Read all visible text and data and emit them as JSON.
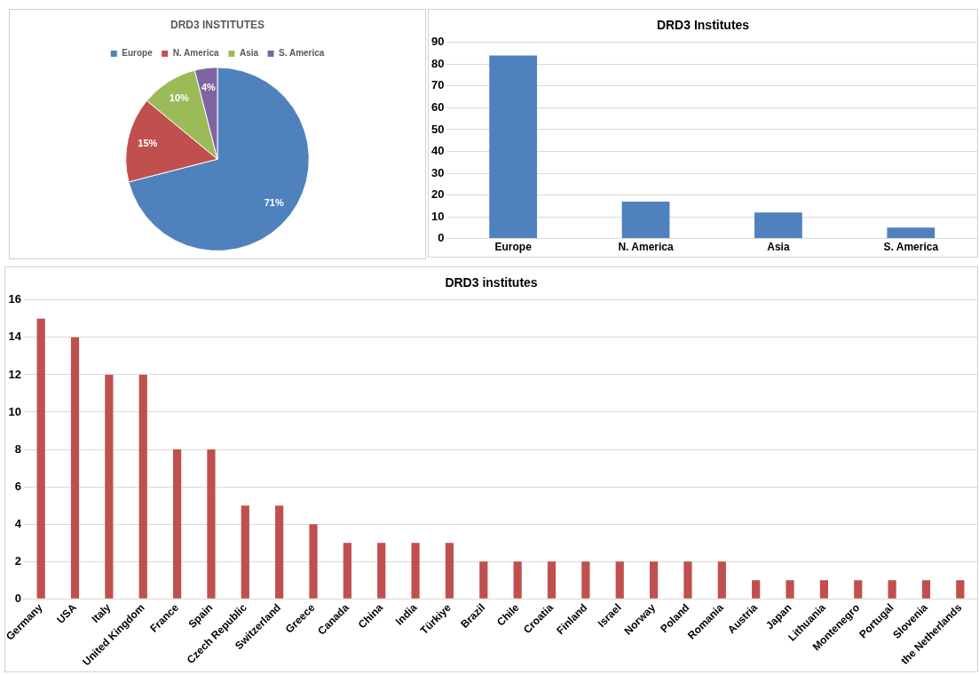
{
  "chart_data": [
    {
      "type": "pie",
      "title": "DRD3 INSTITUTES",
      "categories": [
        "Europe",
        "N. America",
        "Asia",
        "S. America"
      ],
      "values": [
        71,
        15,
        10,
        4
      ],
      "colors": [
        "#4f81bd",
        "#c0504d",
        "#9bbb59",
        "#8064a2"
      ],
      "value_labels": [
        "71%",
        "15%",
        "10%",
        "4%"
      ],
      "legend": "top"
    },
    {
      "type": "bar",
      "title": "DRD3 Institutes",
      "categories": [
        "Europe",
        "N. America",
        "Asia",
        "S. America"
      ],
      "values": [
        84,
        17,
        12,
        5
      ],
      "color": "#4f81bd",
      "ylim": [
        0,
        90
      ],
      "yticks": [
        0,
        10,
        20,
        30,
        40,
        50,
        60,
        70,
        80,
        90
      ],
      "grid": "y"
    },
    {
      "type": "bar",
      "title": "DRD3 institutes",
      "categories": [
        "Germany",
        "USA",
        "Italy",
        "United Kingdom",
        "France",
        "Spain",
        "Czech Republic",
        "Switzerland",
        "Greece",
        "Canada",
        "China",
        "India",
        "Türkiye",
        "Brazil",
        "Chile",
        "Croatia",
        "Finland",
        "Israel",
        "Norway",
        "Poland",
        "Romania",
        "Austria",
        "Japan",
        "Lithuania",
        "Montenegro",
        "Portugal",
        "Slovenia",
        "the Netherlands"
      ],
      "values": [
        15,
        14,
        12,
        12,
        8,
        8,
        5,
        5,
        4,
        3,
        3,
        3,
        3,
        2,
        2,
        2,
        2,
        2,
        2,
        2,
        2,
        1,
        1,
        1,
        1,
        1,
        1,
        1
      ],
      "color": "#c0504d",
      "ylim": [
        0,
        16
      ],
      "yticks": [
        0,
        2,
        4,
        6,
        8,
        10,
        12,
        14,
        16
      ],
      "grid": "y"
    }
  ]
}
